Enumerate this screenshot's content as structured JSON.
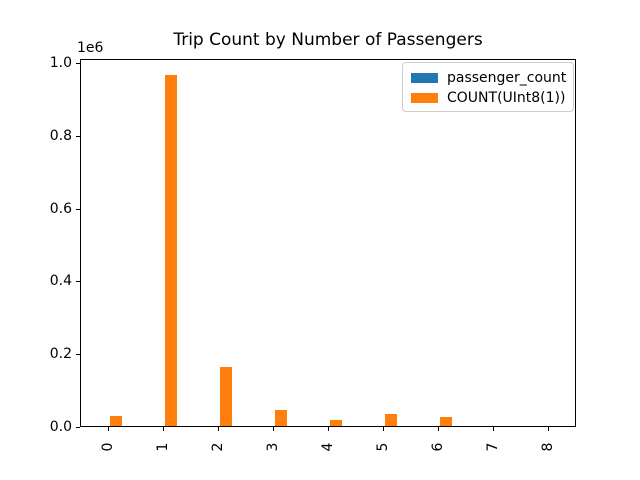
{
  "figure": {
    "background": "#ffffff"
  },
  "chart_data": {
    "type": "bar",
    "title": "Trip Count by Number of Passengers",
    "xlabel": "",
    "ylabel": "",
    "categories": [
      "0",
      "1",
      "2",
      "3",
      "4",
      "5",
      "6",
      "7",
      "8"
    ],
    "series": [
      {
        "name": "passenger_count",
        "color": "#1f77b4",
        "values": [
          0,
          1,
          2,
          3,
          4,
          5,
          6,
          7,
          8
        ]
      },
      {
        "name": "COUNT(UInt8(1))",
        "color": "#ff7f0e",
        "values": [
          28000,
          965000,
          161000,
          45000,
          17000,
          33000,
          26000,
          800,
          200
        ]
      }
    ],
    "ylim": [
      0,
      1011000
    ],
    "yticks": {
      "values": [
        0.0,
        0.2,
        0.4,
        0.6,
        0.8,
        1.0
      ],
      "labels": [
        "0.0",
        "0.2",
        "0.4",
        "0.6",
        "0.8",
        "1.0"
      ],
      "offset_label": "1e6",
      "unit_multiplier": 1000000
    },
    "grid": false,
    "legend": {
      "position": "upper-right",
      "entries": [
        "passenger_count",
        "COUNT(UInt8(1))"
      ]
    }
  }
}
